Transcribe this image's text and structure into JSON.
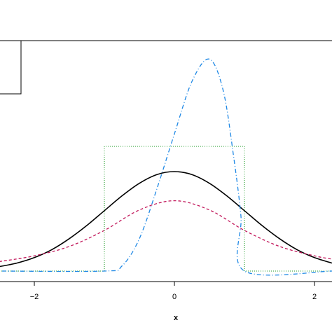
{
  "chart_data": {
    "type": "line",
    "xlabel": "x",
    "ylabel": "",
    "xlim": [
      -2.5,
      2.25
    ],
    "ylim": [
      0,
      0.95
    ],
    "grid": false,
    "x_ticks": [
      -2,
      0,
      2
    ],
    "x_tick_labels": [
      "−2",
      "0",
      "2"
    ],
    "legend_box_visible": true,
    "legend_entries": [],
    "series": [
      {
        "line_style": "solid",
        "color": "#000000",
        "x": [
          -2.5,
          -2.25,
          -2.0,
          -1.75,
          -1.5,
          -1.25,
          -1.0,
          -0.75,
          -0.5,
          -0.25,
          0.0,
          0.25,
          0.5,
          0.75,
          1.0,
          1.25,
          1.5,
          1.75,
          2.0,
          2.25
        ],
        "y": [
          0.018,
          0.032,
          0.054,
          0.086,
          0.13,
          0.183,
          0.242,
          0.301,
          0.352,
          0.387,
          0.399,
          0.387,
          0.352,
          0.301,
          0.242,
          0.183,
          0.13,
          0.086,
          0.054,
          0.032
        ]
      },
      {
        "line_style": "dashed",
        "color": "#c2185b",
        "x": [
          -2.5,
          -2.0,
          -1.5,
          -1.0,
          -0.5,
          0.0,
          0.5,
          1.0,
          1.5,
          2.0,
          2.25
        ],
        "y": [
          0.038,
          0.061,
          0.099,
          0.163,
          0.245,
          0.282,
          0.245,
          0.163,
          0.099,
          0.061,
          0.048
        ]
      },
      {
        "line_style": "dotted",
        "color": "#4caf50",
        "x": [
          -2.5,
          -1.0,
          -1.0,
          1.0,
          1.0,
          2.25
        ],
        "y": [
          0.0,
          0.0,
          0.5,
          0.5,
          0.0,
          0.0
        ]
      },
      {
        "line_style": "dotdash",
        "color": "#1e88e5",
        "x": [
          -2.5,
          -1.0,
          -0.75,
          -0.5,
          -0.25,
          0.0,
          0.25,
          0.5,
          0.7,
          0.85,
          0.95,
          1.0,
          2.25
        ],
        "y": [
          0.0,
          0.0,
          0.02,
          0.13,
          0.33,
          0.55,
          0.76,
          0.85,
          0.72,
          0.45,
          0.22,
          0.0,
          0.0
        ]
      }
    ]
  }
}
